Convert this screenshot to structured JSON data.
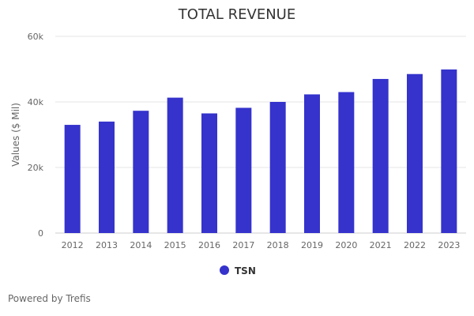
{
  "credit_text": "Powered by Trefis",
  "chart_data": {
    "type": "bar",
    "title": "TOTAL REVENUE",
    "xlabel": "",
    "ylabel": "Values ($ Mil)",
    "categories": [
      "2012",
      "2013",
      "2014",
      "2015",
      "2016",
      "2017",
      "2018",
      "2019",
      "2020",
      "2021",
      "2022",
      "2023"
    ],
    "series": [
      {
        "name": "TSN",
        "values": [
          33000,
          34000,
          37300,
          41300,
          36500,
          38200,
          40000,
          42300,
          43000,
          47000,
          48500,
          49900
        ],
        "color": "#3533cc"
      }
    ],
    "ylim": [
      0,
      60000
    ],
    "yticks": [
      0,
      20000,
      40000,
      60000
    ],
    "ytick_labels": [
      "0",
      "20k",
      "40k",
      "60k"
    ],
    "grid": true,
    "legend_position": "bottom-center"
  }
}
